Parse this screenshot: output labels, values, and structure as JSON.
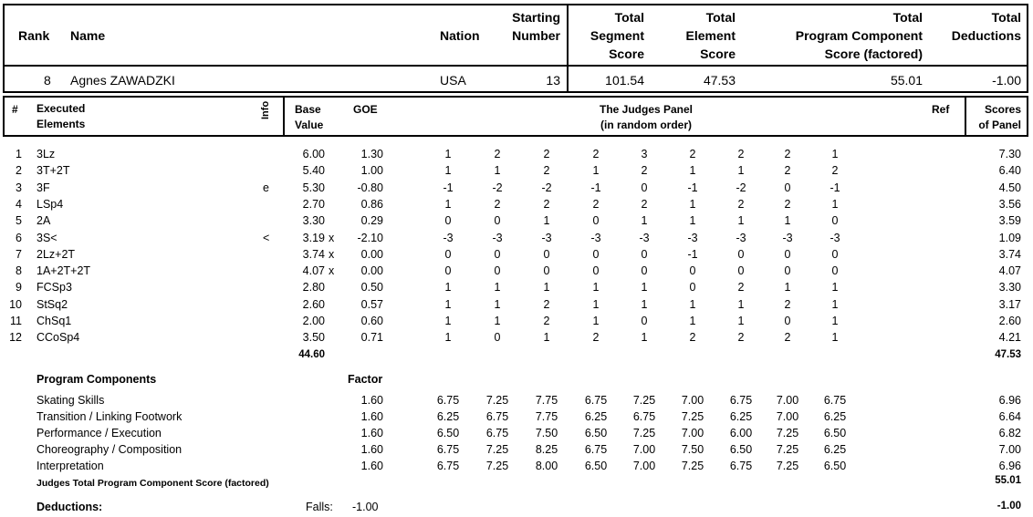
{
  "header": {
    "rank_label": "Rank",
    "name_label": "Name",
    "nation_label": "Nation",
    "starting_label": [
      "Starting",
      "Number"
    ],
    "tss_label": [
      "Total",
      "Segment",
      "Score"
    ],
    "tes_label": [
      "Total",
      "Element",
      "Score"
    ],
    "pcs_label": [
      "Total",
      "Program Component",
      "Score (factored)"
    ],
    "ded_label": [
      "Total",
      "Deductions"
    ]
  },
  "skater": {
    "rank": "8",
    "name": "Agnes ZAWADZKI",
    "nation": "USA",
    "starting_number": "13",
    "total_segment_score": "101.54",
    "total_element_score": "47.53",
    "total_pcs": "55.01",
    "total_deductions": "-1.00"
  },
  "elements_header": {
    "num": "#",
    "executed": [
      "Executed",
      "Elements"
    ],
    "info": "Info",
    "base": [
      "Base",
      "Value"
    ],
    "goe": "GOE",
    "judges": [
      "The Judges Panel",
      "(in random order)"
    ],
    "ref": "Ref",
    "scores": [
      "Scores",
      "of Panel"
    ]
  },
  "elements": [
    {
      "num": "1",
      "name": "3Lz",
      "info": "",
      "base": "6.00",
      "x": "",
      "goe": "1.30",
      "judges": [
        "1",
        "2",
        "2",
        "2",
        "3",
        "2",
        "2",
        "2",
        "1"
      ],
      "score": "7.30"
    },
    {
      "num": "2",
      "name": "3T+2T",
      "info": "",
      "base": "5.40",
      "x": "",
      "goe": "1.00",
      "judges": [
        "1",
        "1",
        "2",
        "1",
        "2",
        "1",
        "1",
        "2",
        "2"
      ],
      "score": "6.40"
    },
    {
      "num": "3",
      "name": "3F",
      "info": "e",
      "base": "5.30",
      "x": "",
      "goe": "-0.80",
      "judges": [
        "-1",
        "-2",
        "-2",
        "-1",
        "0",
        "-1",
        "-2",
        "0",
        "-1"
      ],
      "score": "4.50"
    },
    {
      "num": "4",
      "name": "LSp4",
      "info": "",
      "base": "2.70",
      "x": "",
      "goe": "0.86",
      "judges": [
        "1",
        "2",
        "2",
        "2",
        "2",
        "1",
        "2",
        "2",
        "1"
      ],
      "score": "3.56"
    },
    {
      "num": "5",
      "name": "2A",
      "info": "",
      "base": "3.30",
      "x": "",
      "goe": "0.29",
      "judges": [
        "0",
        "0",
        "1",
        "0",
        "1",
        "1",
        "1",
        "1",
        "0"
      ],
      "score": "3.59"
    },
    {
      "num": "6",
      "name": "3S<",
      "info": "<",
      "base": "3.19",
      "x": "x",
      "goe": "-2.10",
      "judges": [
        "-3",
        "-3",
        "-3",
        "-3",
        "-3",
        "-3",
        "-3",
        "-3",
        "-3"
      ],
      "score": "1.09"
    },
    {
      "num": "7",
      "name": "2Lz+2T",
      "info": "",
      "base": "3.74",
      "x": "x",
      "goe": "0.00",
      "judges": [
        "0",
        "0",
        "0",
        "0",
        "0",
        "-1",
        "0",
        "0",
        "0"
      ],
      "score": "3.74"
    },
    {
      "num": "8",
      "name": "1A+2T+2T",
      "info": "",
      "base": "4.07",
      "x": "x",
      "goe": "0.00",
      "judges": [
        "0",
        "0",
        "0",
        "0",
        "0",
        "0",
        "0",
        "0",
        "0"
      ],
      "score": "4.07"
    },
    {
      "num": "9",
      "name": "FCSp3",
      "info": "",
      "base": "2.80",
      "x": "",
      "goe": "0.50",
      "judges": [
        "1",
        "1",
        "1",
        "1",
        "1",
        "0",
        "2",
        "1",
        "1"
      ],
      "score": "3.30"
    },
    {
      "num": "10",
      "name": "StSq2",
      "info": "",
      "base": "2.60",
      "x": "",
      "goe": "0.57",
      "judges": [
        "1",
        "1",
        "2",
        "1",
        "1",
        "1",
        "1",
        "2",
        "1"
      ],
      "score": "3.17"
    },
    {
      "num": "11",
      "name": "ChSq1",
      "info": "",
      "base": "2.00",
      "x": "",
      "goe": "0.60",
      "judges": [
        "1",
        "1",
        "2",
        "1",
        "0",
        "1",
        "1",
        "0",
        "1"
      ],
      "score": "2.60"
    },
    {
      "num": "12",
      "name": "CCoSp4",
      "info": "",
      "base": "3.50",
      "x": "",
      "goe": "0.71",
      "judges": [
        "1",
        "0",
        "1",
        "2",
        "1",
        "2",
        "2",
        "2",
        "1"
      ],
      "score": "4.21"
    }
  ],
  "elements_totals": {
    "base": "44.60",
    "score": "47.53"
  },
  "components_header": {
    "title": "Program Components",
    "factor": "Factor"
  },
  "components": [
    {
      "name": "Skating Skills",
      "factor": "1.60",
      "judges": [
        "6.75",
        "7.25",
        "7.75",
        "6.75",
        "7.25",
        "7.00",
        "6.75",
        "7.00",
        "6.75"
      ],
      "score": "6.96"
    },
    {
      "name": "Transition / Linking Footwork",
      "factor": "1.60",
      "judges": [
        "6.25",
        "6.75",
        "7.75",
        "6.25",
        "6.75",
        "7.25",
        "6.25",
        "7.00",
        "6.25"
      ],
      "score": "6.64"
    },
    {
      "name": "Performance / Execution",
      "factor": "1.60",
      "judges": [
        "6.50",
        "6.75",
        "7.50",
        "6.50",
        "7.25",
        "7.00",
        "6.00",
        "7.25",
        "6.50"
      ],
      "score": "6.82"
    },
    {
      "name": "Choreography / Composition",
      "factor": "1.60",
      "judges": [
        "6.75",
        "7.25",
        "8.25",
        "6.75",
        "7.00",
        "7.50",
        "6.50",
        "7.25",
        "6.25"
      ],
      "score": "7.00"
    },
    {
      "name": "Interpretation",
      "factor": "1.60",
      "judges": [
        "6.75",
        "7.25",
        "8.00",
        "6.50",
        "7.00",
        "7.25",
        "6.75",
        "7.25",
        "6.50"
      ],
      "score": "6.96"
    }
  ],
  "components_total": {
    "label": "Judges Total Program Component Score (factored)",
    "score": "55.01"
  },
  "deductions": {
    "label": "Deductions:",
    "falls_label": "Falls:",
    "falls_value": "-1.00",
    "total": "-1.00"
  }
}
